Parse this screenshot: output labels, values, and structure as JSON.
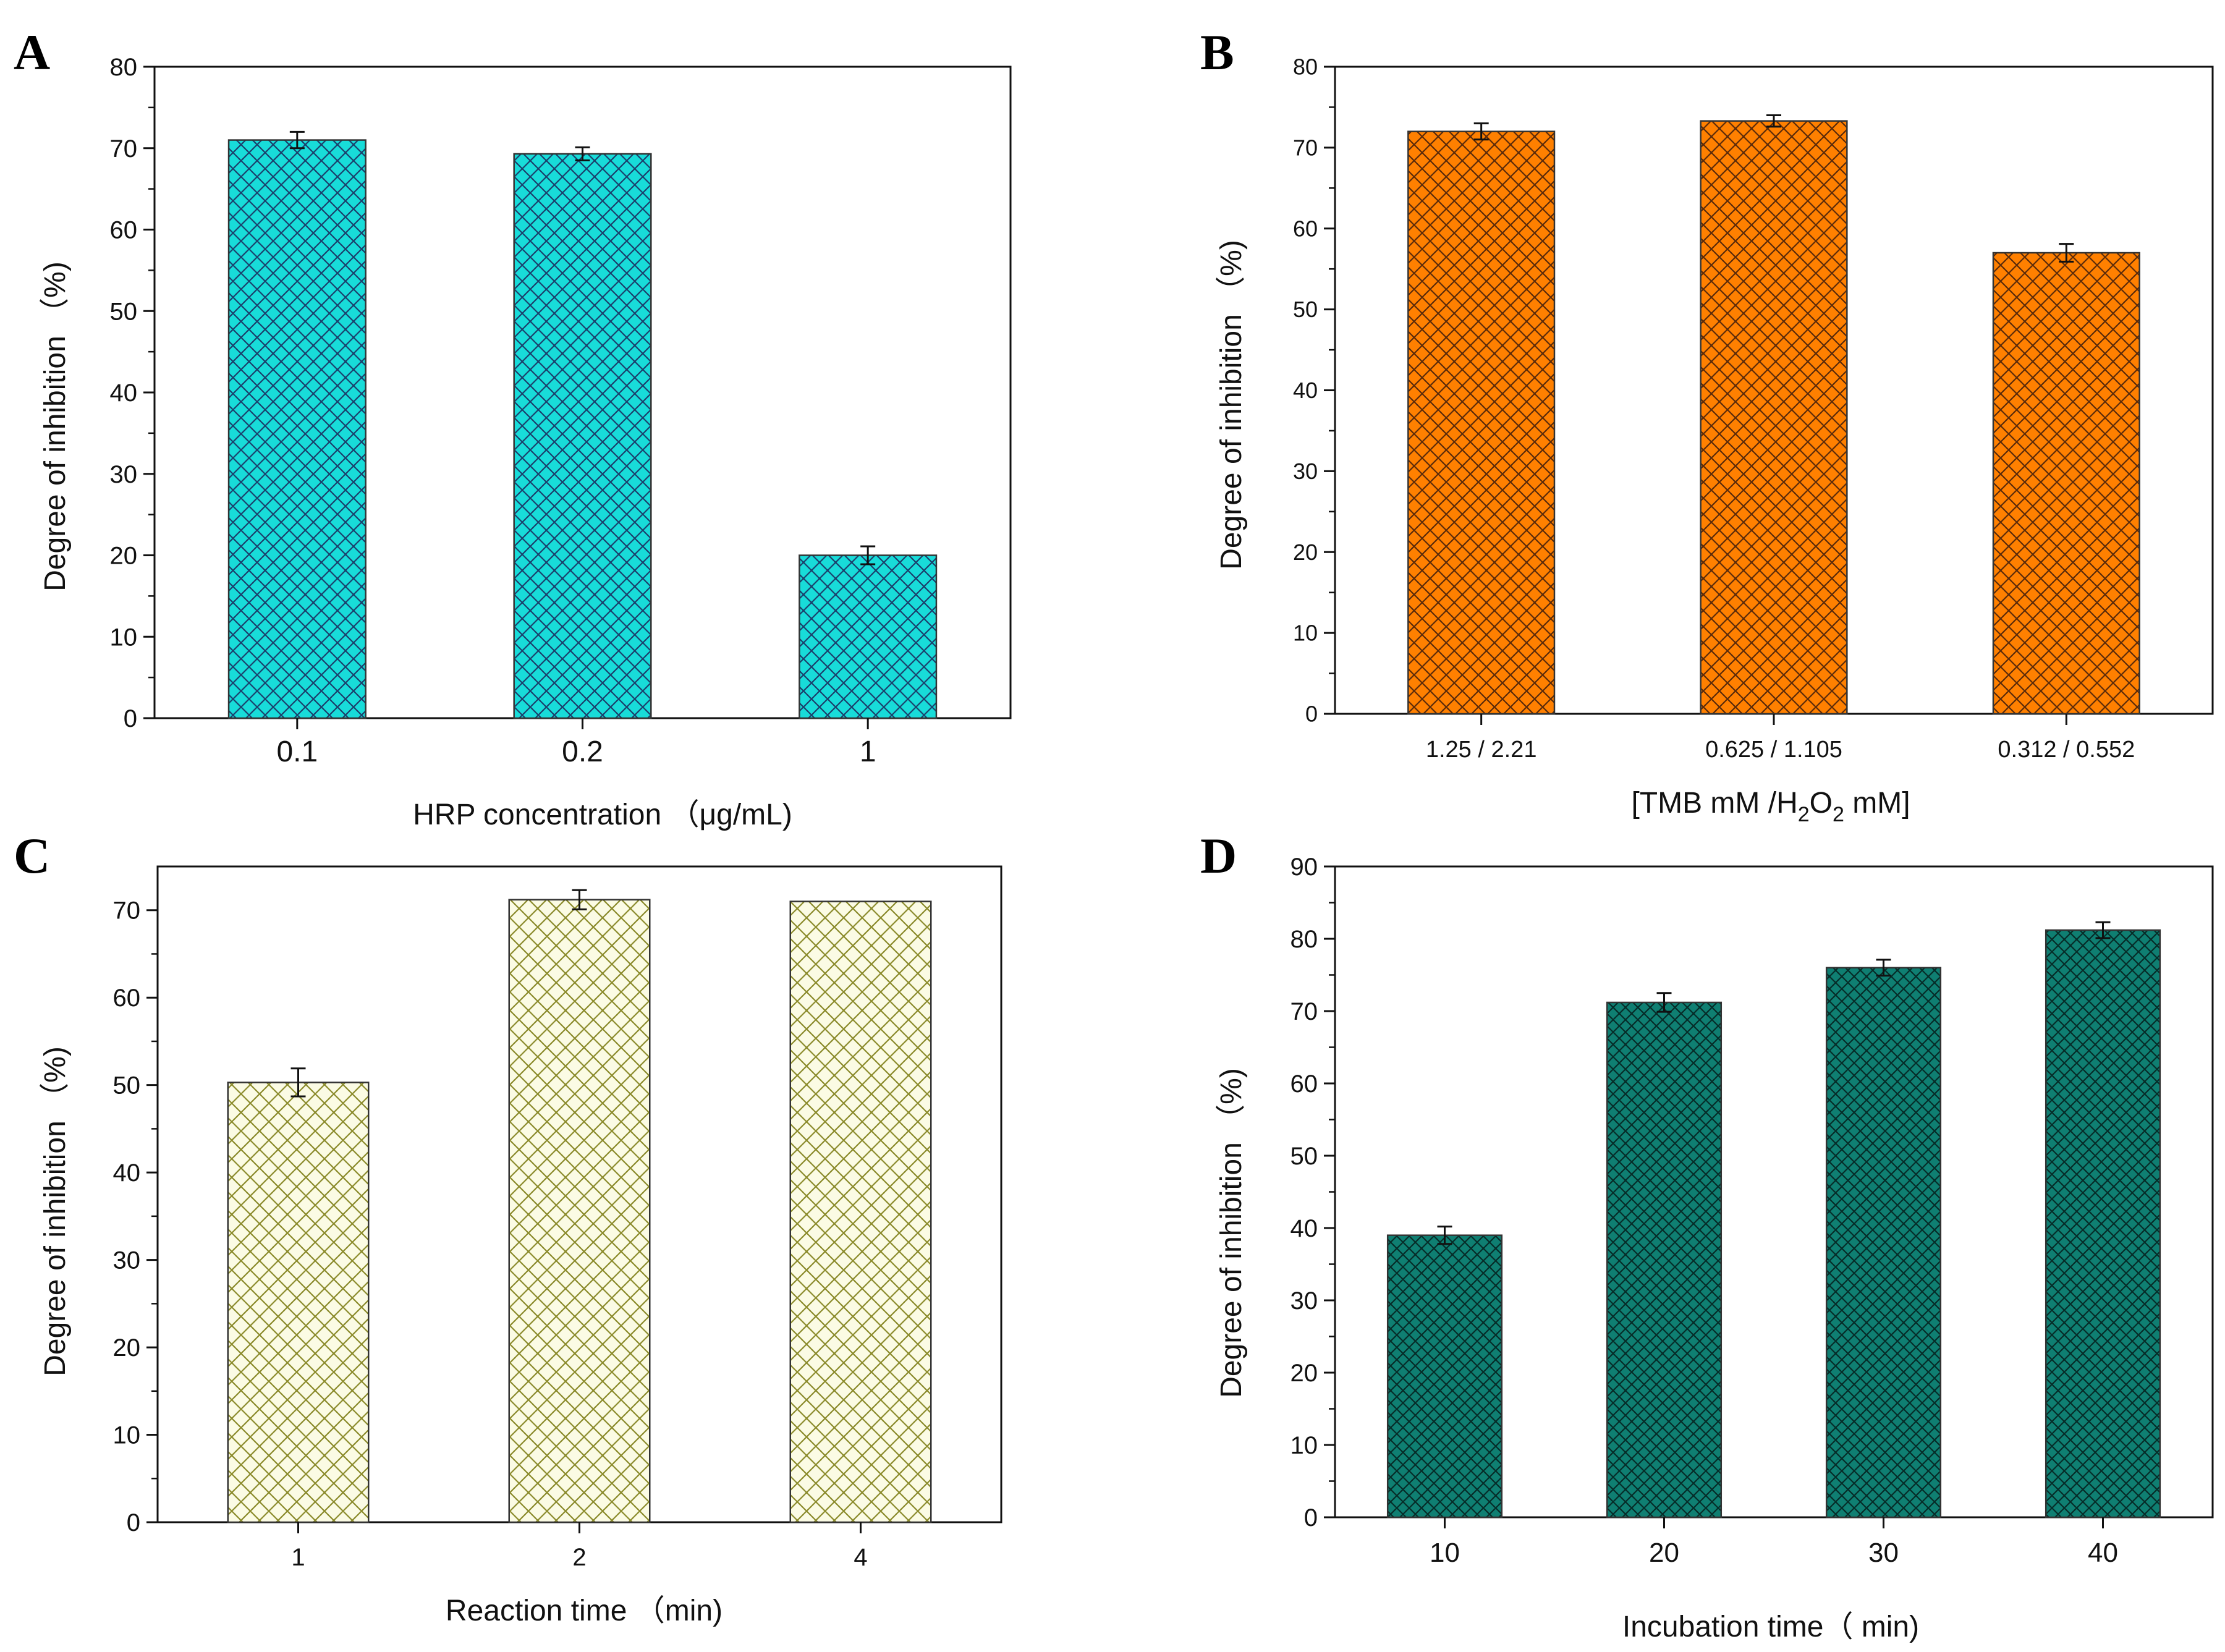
{
  "chart_data": [
    {
      "panel": "A",
      "type": "bar",
      "categories": [
        "0.1",
        "0.2",
        "1"
      ],
      "values": [
        71,
        69.3,
        20
      ],
      "errors": [
        1.0,
        0.8,
        1.1
      ],
      "xlabel": "HRP concentration （μg/mL)",
      "ylabel": "Degree of inhibition （%)",
      "ylim": [
        0,
        80
      ],
      "yticks": [
        "0",
        "10",
        "20",
        "30",
        "40",
        "50",
        "60",
        "70",
        "80"
      ],
      "bar_color": "#18dcd9",
      "hatch_color": "#1b3f6b"
    },
    {
      "panel": "B",
      "type": "bar",
      "categories": [
        "1.25 / 2.21",
        "0.625  / 1.105",
        "0.312 / 0.552"
      ],
      "values": [
        72,
        73.3,
        57
      ],
      "errors": [
        1.0,
        0.7,
        1.1
      ],
      "xlabel": "[TMB mM /H2O2 mM]",
      "xlabel_parts": {
        "pre": "[TMB mM /H",
        "sub1": "2",
        "mid": "O",
        "sub2": "2",
        "post": " mM]"
      },
      "ylabel": "Degree of inhibition （%)",
      "ylim": [
        0,
        80
      ],
      "yticks": [
        "0",
        "10",
        "20",
        "30",
        "40",
        "50",
        "60",
        "70",
        "80"
      ],
      "bar_color": "#ff8000",
      "hatch_color": "#5a2a0a"
    },
    {
      "panel": "C",
      "type": "bar",
      "categories": [
        "1",
        "2",
        "4"
      ],
      "values": [
        50.3,
        71.2,
        71
      ],
      "errors": [
        1.6,
        1.1,
        0
      ],
      "xlabel": "Reaction time （min)",
      "ylabel": "Degree of inhibition （%)",
      "ylim": [
        0,
        75
      ],
      "yticks": [
        "0",
        "10",
        "20",
        "30",
        "40",
        "50",
        "60",
        "70"
      ],
      "bar_color": "#fbfbe4",
      "hatch_color": "#8a8a2a"
    },
    {
      "panel": "D",
      "type": "bar",
      "categories": [
        "10",
        "20",
        "30",
        "40"
      ],
      "values": [
        39,
        71.2,
        76,
        81.2
      ],
      "errors": [
        1.2,
        1.3,
        1.1,
        1.1
      ],
      "xlabel": "Incubation time（ min)",
      "ylabel": "Degree of inhibition （%)",
      "ylim": [
        0,
        90
      ],
      "yticks": [
        "0",
        "10",
        "20",
        "30",
        "40",
        "50",
        "60",
        "70",
        "80",
        "90"
      ],
      "bar_color": "#0f7f72",
      "hatch_color": "#062c28"
    }
  ]
}
